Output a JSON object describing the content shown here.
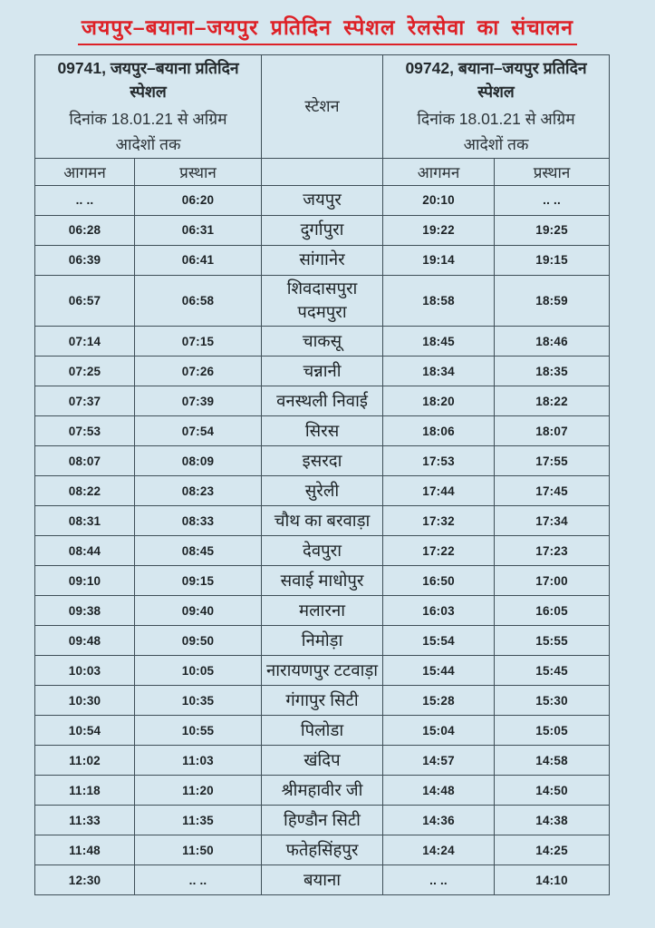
{
  "title": "जयपुर–बयाना–जयपुर प्रतिदिन स्पेशल रेलसेवा का संचालन",
  "accent_color": "#dd2127",
  "background_color": "#d6e7ef",
  "border_color": "#3f4f58",
  "table": {
    "left_train": {
      "name": "09741, जयपुर–बयाना प्रतिदिन\nस्पेशल",
      "validity": "दिनांक 18.01.21 से अग्रिम\nआदेशों तक"
    },
    "station_header": "स्टेशन",
    "right_train": {
      "name": "09742, बयाना–जयपुर प्रतिदिन\nस्पेशल",
      "validity": "दिनांक 18.01.21 से  अग्रिम\nआदेशों तक"
    },
    "col_labels": {
      "arrival": "आगमन",
      "departure": "प्रस्थान"
    },
    "rows": [
      [
        ".. ..",
        "06:20",
        "जयपुर",
        "20:10",
        ".. .."
      ],
      [
        "06:28",
        "06:31",
        "दुर्गापुरा",
        "19:22",
        "19:25"
      ],
      [
        "06:39",
        "06:41",
        "सांगानेर",
        "19:14",
        "19:15"
      ],
      [
        "06:57",
        "06:58",
        "शिवदासपुरा\nपदमपुरा",
        "18:58",
        "18:59"
      ],
      [
        "07:14",
        "07:15",
        "चाकसू",
        "18:45",
        "18:46"
      ],
      [
        "07:25",
        "07:26",
        "चन्नानी",
        "18:34",
        "18:35"
      ],
      [
        "07:37",
        "07:39",
        "वनस्थली निवाई",
        "18:20",
        "18:22"
      ],
      [
        "07:53",
        "07:54",
        "सिरस",
        "18:06",
        "18:07"
      ],
      [
        "08:07",
        "08:09",
        "इसरदा",
        "17:53",
        "17:55"
      ],
      [
        "08:22",
        "08:23",
        "सुरेली",
        "17:44",
        "17:45"
      ],
      [
        "08:31",
        "08:33",
        "चौथ का बरवाड़ा",
        "17:32",
        "17:34"
      ],
      [
        "08:44",
        "08:45",
        "देवपुरा",
        "17:22",
        "17:23"
      ],
      [
        "09:10",
        "09:15",
        "सवाई माधोपुर",
        "16:50",
        "17:00"
      ],
      [
        "09:38",
        "09:40",
        "मलारना",
        "16:03",
        "16:05"
      ],
      [
        "09:48",
        "09:50",
        "निमोड़ा",
        "15:54",
        "15:55"
      ],
      [
        "10:03",
        "10:05",
        "नारायणपुर टटवाड़ा",
        "15:44",
        "15:45"
      ],
      [
        "10:30",
        "10:35",
        "गंगापुर सिटी",
        "15:28",
        "15:30"
      ],
      [
        "10:54",
        "10:55",
        "पिलोडा",
        "15:04",
        "15:05"
      ],
      [
        "11:02",
        "11:03",
        "खंदिप",
        "14:57",
        "14:58"
      ],
      [
        "11:18",
        "11:20",
        "श्रीमहावीर जी",
        "14:48",
        "14:50"
      ],
      [
        "11:33",
        "11:35",
        "हिण्डौन सिटी",
        "14:36",
        "14:38"
      ],
      [
        "11:48",
        "11:50",
        "फतेहसिंहपुर",
        "14:24",
        "14:25"
      ],
      [
        "12:30",
        ".. ..",
        "बयाना",
        ".. ..",
        "14:10"
      ]
    ]
  }
}
